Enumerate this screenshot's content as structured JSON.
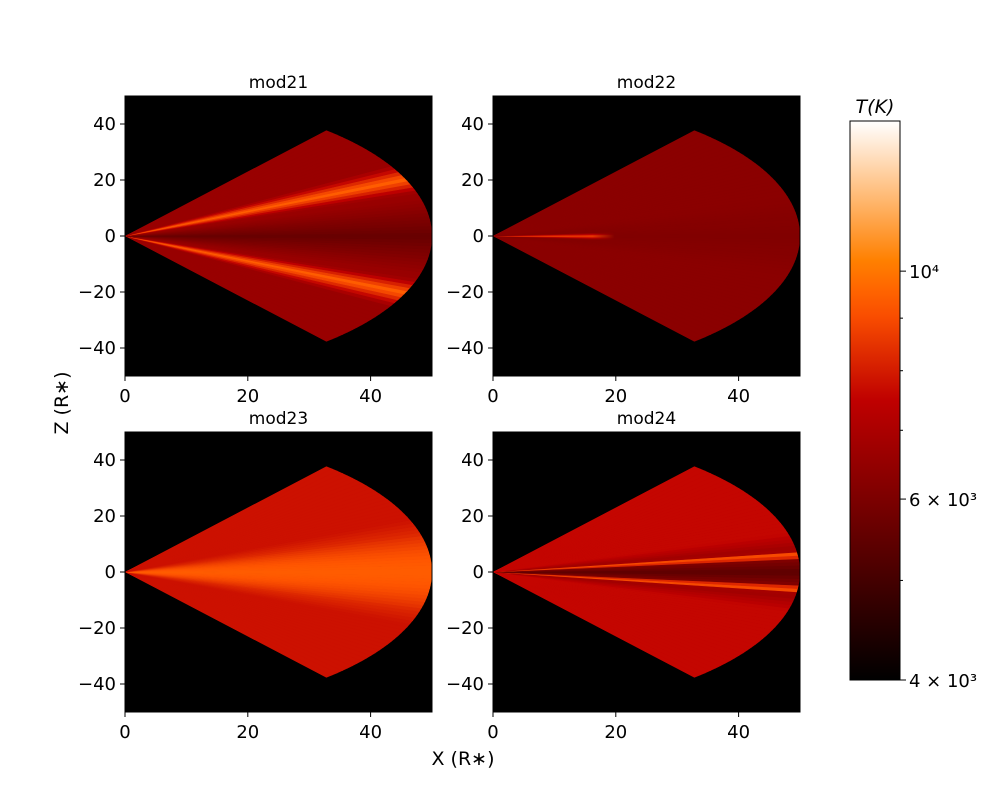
{
  "chart_data": {
    "type": "heatmap",
    "figure_xlabel": "X (R∗)",
    "figure_ylabel": "Z (R∗)",
    "xlim": [
      0,
      50
    ],
    "ylim": [
      -50,
      50
    ],
    "x_ticks": [
      0,
      20,
      40
    ],
    "y_ticks": [
      40,
      20,
      0,
      -20,
      -40
    ],
    "colorbar": {
      "title": "T(K)",
      "scale": "log",
      "range": [
        4000,
        14000
      ],
      "major_ticks": [
        {
          "value": 10000,
          "label": "10⁴"
        },
        {
          "value": 6000,
          "label": "6 × 10³"
        },
        {
          "value": 4000,
          "label": "4 × 10³"
        }
      ],
      "minor_ticks": [
        5000,
        7000,
        8000,
        9000
      ],
      "colormap": "gist_heat"
    },
    "panels": [
      {
        "title": "mod21",
        "domain": {
          "outer_radius": 50,
          "opening_half_angle_deg": 49
        },
        "base_temperature": 6600,
        "near_midplane_temperature": 5600,
        "features": [
          {
            "description": "hot thin layers",
            "angle_deg": 24,
            "width_deg": 6,
            "temperature": 9500
          },
          {
            "description": "hot thin layers",
            "angle_deg": -24,
            "width_deg": 6,
            "temperature": 9500
          }
        ]
      },
      {
        "title": "mod22",
        "domain": {
          "outer_radius": 50,
          "opening_half_angle_deg": 49
        },
        "base_temperature": 6300,
        "near_midplane_temperature": 6100,
        "features": [
          {
            "description": "hot inner midplane",
            "angle_deg": 0,
            "width_deg": 4,
            "temperature": 9000,
            "r_max": 18
          }
        ]
      },
      {
        "title": "mod23",
        "domain": {
          "outer_radius": 50,
          "opening_half_angle_deg": 49
        },
        "base_temperature": 7800,
        "near_midplane_temperature": 9200,
        "features": [
          {
            "description": "hot wedge",
            "angle_deg": 0,
            "width_deg": 22,
            "temperature": 9400
          }
        ]
      },
      {
        "title": "mod24",
        "domain": {
          "outer_radius": 50,
          "opening_half_angle_deg": 49
        },
        "base_temperature": 7600,
        "near_midplane_temperature": 5400,
        "features": [
          {
            "description": "hot thin layers",
            "angle_deg": 7,
            "width_deg": 2,
            "temperature": 9800
          },
          {
            "description": "hot thin layers",
            "angle_deg": -7,
            "width_deg": 2,
            "temperature": 9800
          }
        ]
      }
    ]
  }
}
